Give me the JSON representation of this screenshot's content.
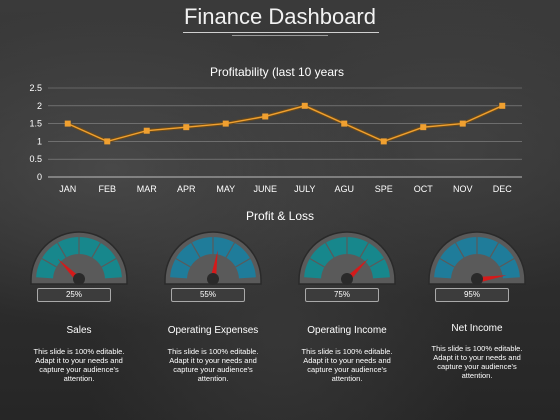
{
  "page": {
    "title": "Finance Dashboard",
    "section_profit_loss": "Profit & Loss"
  },
  "colors": {
    "line": "#f0a030",
    "marker": "#f0a030",
    "gauge_teal": "#17878c",
    "gauge_blue": "#1f7c9a",
    "needle": "#d41a1a",
    "gauge_body": "#5a5a5a"
  },
  "chart_data": {
    "type": "line",
    "title": "Profitability (last 10 years",
    "categories": [
      "JAN",
      "FEB",
      "MAR",
      "APR",
      "MAY",
      "JUNE",
      "JULY",
      "AGU",
      "SPE",
      "OCT",
      "NOV",
      "DEC"
    ],
    "values": [
      1.5,
      1.0,
      1.3,
      1.4,
      1.5,
      1.7,
      2.0,
      1.5,
      1.0,
      1.4,
      1.5,
      2.0
    ],
    "ylim": [
      0,
      2.5
    ],
    "yticks": [
      "0",
      "0.5",
      "1",
      "1.5",
      "2",
      "2.5"
    ],
    "grid": true,
    "legend": "none"
  },
  "gauges": [
    {
      "value_label": "25%",
      "value": 25,
      "title": "Sales",
      "desc": [
        "This slide is 100% editable.",
        "Adapt it to your needs and",
        "capture your audience's",
        "attention."
      ],
      "color": "#17878c",
      "icon": "gauge-icon"
    },
    {
      "value_label": "55%",
      "value": 55,
      "title": "Operating Expenses",
      "desc": [
        "This slide is 100% editable.",
        "Adapt it to your needs and",
        "capture your audience's",
        "attention."
      ],
      "color": "#1f7c9a",
      "icon": "gauge-icon"
    },
    {
      "value_label": "75%",
      "value": 75,
      "title": "Operating Income",
      "desc": [
        "This slide is 100% editable.",
        "Adapt it to your needs and",
        "capture your audience's",
        "attention."
      ],
      "color": "#17878c",
      "icon": "gauge-icon"
    },
    {
      "value_label": "95%",
      "value": 95,
      "title": "Net Income",
      "desc": [
        "This slide is 100% editable.",
        "Adapt it to your needs and",
        "capture your audience's",
        "attention."
      ],
      "color": "#1f7c9a",
      "icon": "gauge-icon"
    }
  ]
}
